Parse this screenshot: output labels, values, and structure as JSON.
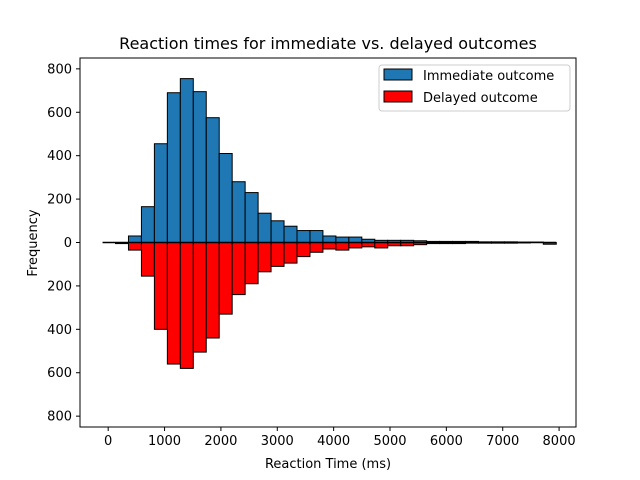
{
  "chart_data": {
    "type": "bar",
    "title": "Reaction times for immediate vs. delayed outcomes",
    "xlabel": "Reaction Time (ms)",
    "ylabel": "Frequency",
    "xlim": [
      -500,
      8300
    ],
    "ylim": [
      -850,
      850
    ],
    "xticks": [
      0,
      1000,
      2000,
      3000,
      4000,
      5000,
      6000,
      7000,
      8000
    ],
    "xtick_labels": [
      "0",
      "1000",
      "2000",
      "3000",
      "4000",
      "5000",
      "6000",
      "7000",
      "8000"
    ],
    "yticks": [
      -800,
      -600,
      -400,
      -200,
      0,
      200,
      400,
      600,
      800
    ],
    "ytick_labels": [
      "800",
      "600",
      "400",
      "200",
      "0",
      "200",
      "400",
      "600",
      "800"
    ],
    "bin_width": 230,
    "bin_starts": [
      -100,
      130,
      360,
      590,
      820,
      1050,
      1280,
      1510,
      1740,
      1970,
      2200,
      2430,
      2660,
      2890,
      3120,
      3350,
      3580,
      3810,
      4040,
      4270,
      4500,
      4730,
      4960,
      5190,
      5420,
      5650,
      5880,
      6110,
      6340,
      6570,
      6800,
      7030,
      7260,
      7490,
      7720
    ],
    "grid": false,
    "legend_position": "top-right",
    "series": [
      {
        "name": "Immediate outcome",
        "color": "#1f77b4",
        "direction": "up",
        "values": [
          0,
          0,
          30,
          165,
          455,
          690,
          755,
          695,
          575,
          410,
          280,
          230,
          135,
          100,
          75,
          55,
          55,
          30,
          25,
          25,
          15,
          10,
          10,
          10,
          8,
          5,
          5,
          5,
          5,
          3,
          3,
          3,
          2,
          2,
          0
        ]
      },
      {
        "name": "Delayed outcome",
        "color": "#ff0000",
        "direction": "down",
        "values": [
          0,
          5,
          35,
          155,
          400,
          560,
          580,
          505,
          440,
          330,
          240,
          190,
          135,
          110,
          95,
          65,
          45,
          30,
          35,
          25,
          20,
          25,
          15,
          15,
          10,
          5,
          5,
          5,
          3,
          3,
          3,
          3,
          2,
          0,
          8
        ]
      }
    ]
  }
}
